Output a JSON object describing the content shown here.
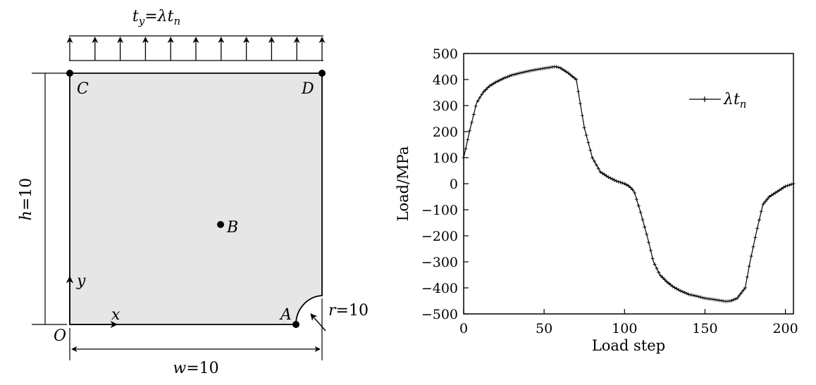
{
  "diagram": {
    "load_label_t": "t",
    "load_label_t_sub": "y",
    "load_label_eq": "=λt",
    "load_label_eq_sub": "n",
    "height_label_var": "h",
    "height_label_val": "=10",
    "width_label_var": "w",
    "width_label_val": "=10",
    "radius_label_var": "r",
    "radius_label_val": "=10",
    "points": {
      "A": "A",
      "B": "B",
      "C": "C",
      "D": "D",
      "O": "O"
    },
    "axis_x": "x",
    "axis_y": "y",
    "plate_color": "#e6e6e6",
    "arrow_count": 11
  },
  "chart_data": {
    "type": "line",
    "xlabel": "Load step",
    "ylabel": "Load/MPa",
    "xlim": [
      0,
      205
    ],
    "ylim": [
      -500,
      500
    ],
    "xticks": [
      0,
      50,
      100,
      150,
      200
    ],
    "yticks": [
      500,
      400,
      300,
      200,
      100,
      0,
      -100,
      -200,
      -300,
      -400,
      -500
    ],
    "legend_position": "top-right",
    "grid": false,
    "series": [
      {
        "name_main": "λt",
        "name_sub": "n",
        "color": "#000000",
        "marker": "plus",
        "x": [
          0,
          4,
          8,
          12,
          16,
          20,
          25,
          30,
          35,
          40,
          45,
          50,
          55,
          57,
          60,
          65,
          70,
          75,
          80,
          85,
          90,
          95,
          100,
          103,
          106,
          110,
          114,
          118,
          122,
          126,
          130,
          135,
          140,
          145,
          150,
          155,
          160,
          163,
          166,
          170,
          175,
          178,
          182,
          186,
          190,
          195,
          200,
          205
        ],
        "y": [
          100,
          210,
          310,
          350,
          375,
          390,
          405,
          417,
          425,
          432,
          438,
          443,
          448,
          450,
          445,
          425,
          400,
          215,
          100,
          45,
          25,
          10,
          0,
          -10,
          -30,
          -110,
          -200,
          -300,
          -350,
          -375,
          -395,
          -412,
          -425,
          -432,
          -440,
          -444,
          -449,
          -452,
          -450,
          -440,
          -400,
          -300,
          -185,
          -80,
          -50,
          -30,
          -10,
          0
        ]
      }
    ]
  }
}
